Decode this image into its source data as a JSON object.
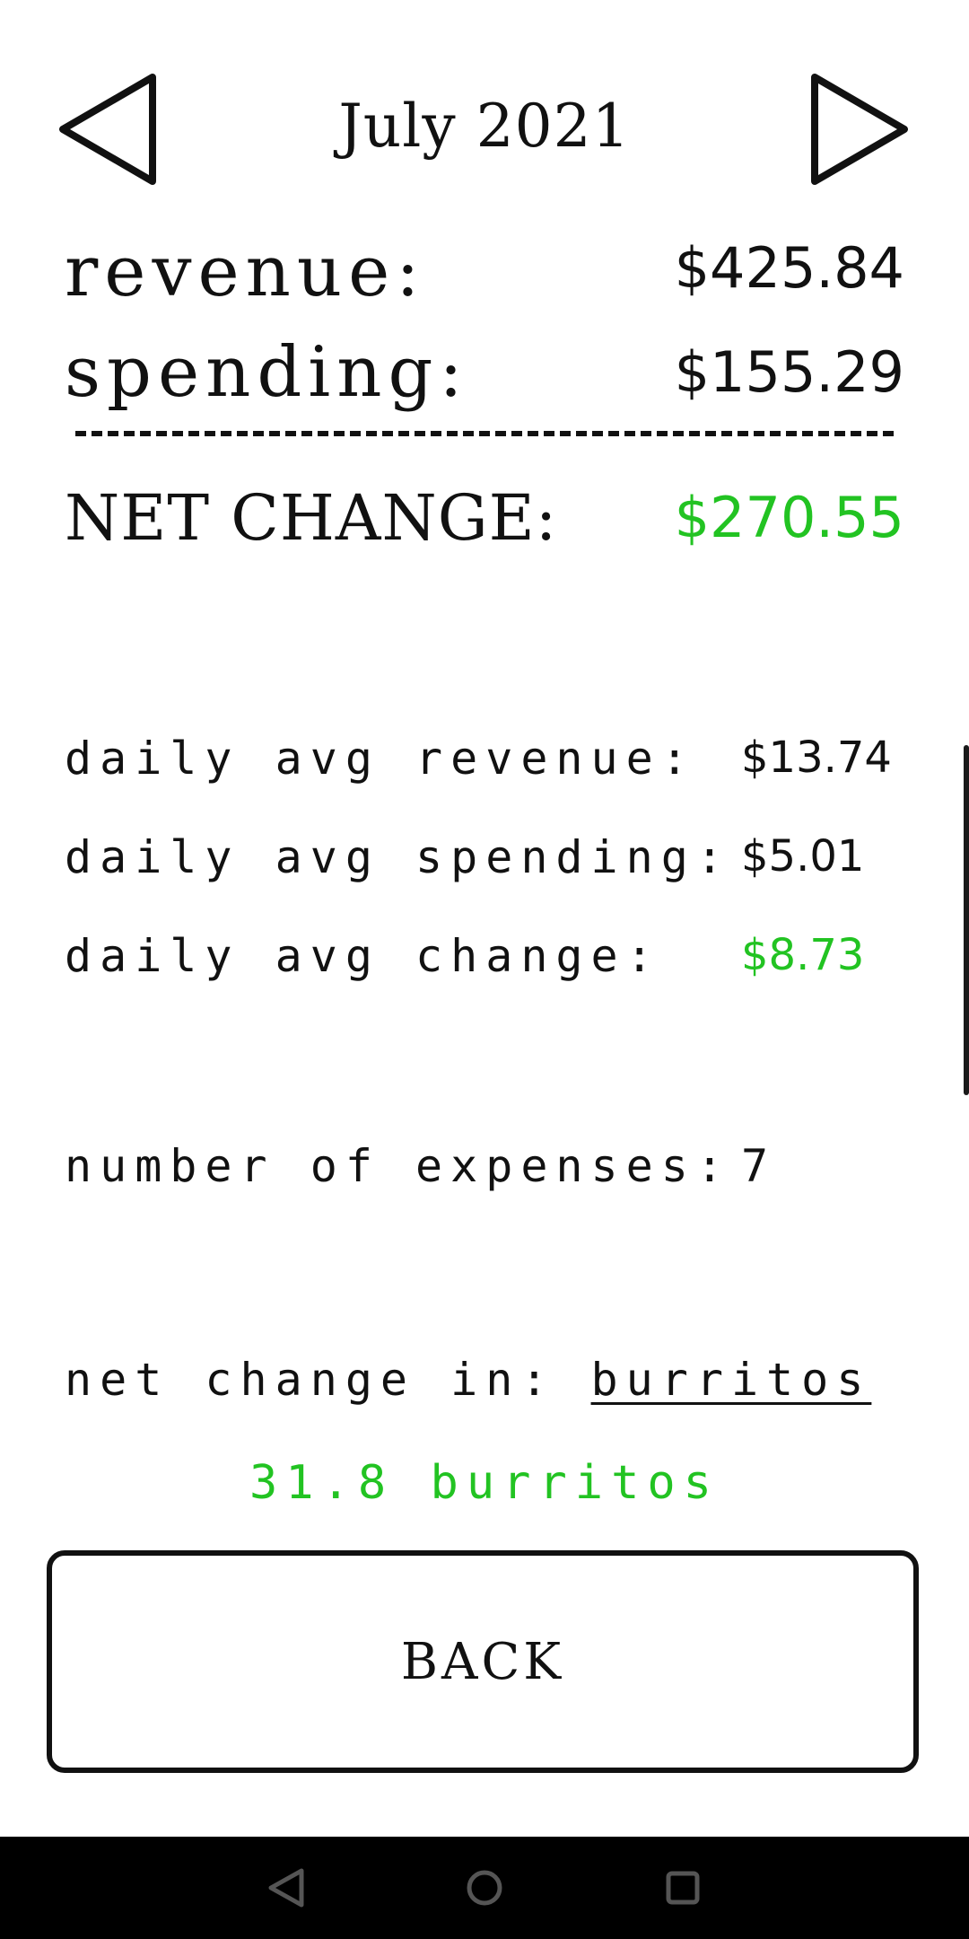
{
  "header": {
    "month_title": "July 2021",
    "prev_icon": "triangle-left-icon",
    "next_icon": "triangle-right-icon"
  },
  "summary": {
    "revenue_label": "revenue:",
    "revenue_value": "$425.84",
    "spending_label": "spending:",
    "spending_value": "$155.29",
    "net_change_label": "NET CHANGE:",
    "net_change_value": "$270.55"
  },
  "averages": {
    "avg_revenue_label": "daily avg revenue:",
    "avg_revenue_value": "$13.74",
    "avg_spending_label": "daily avg spending:",
    "avg_spending_value": "$5.01",
    "avg_change_label": "daily avg change:",
    "avg_change_value": "$8.73"
  },
  "expenses": {
    "count_label": "number of expenses:",
    "count_value": "7"
  },
  "conversion": {
    "label": "net change in:",
    "unit": "burritos",
    "result": "31.8 burritos"
  },
  "back_button": {
    "label": "BACK"
  },
  "system_nav": {
    "icons": [
      "back-icon",
      "home-icon",
      "recents-icon"
    ]
  },
  "colors": {
    "positive": "#22c322",
    "text": "#111111",
    "background": "#ffffff",
    "system_bar": "#000000"
  }
}
